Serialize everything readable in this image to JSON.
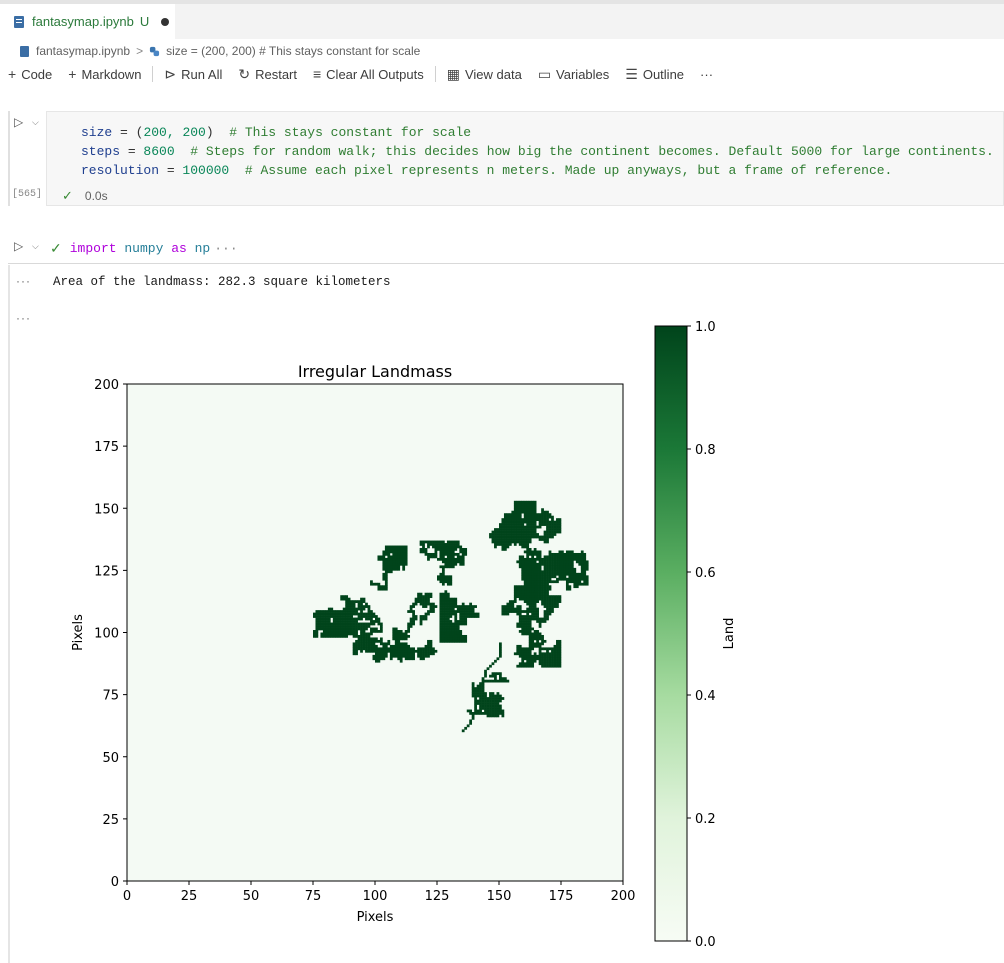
{
  "tab": {
    "filename": "fantasymap.ipynb",
    "status": "U"
  },
  "breadcrumb": {
    "file": "fantasymap.ipynb",
    "sep": ">",
    "symbol": "size = (200, 200)  # This stays constant for scale"
  },
  "toolbar": {
    "code": "Code",
    "markdown": "Markdown",
    "run_all": "Run All",
    "restart": "Restart",
    "clear": "Clear All Outputs",
    "view_data": "View data",
    "variables": "Variables",
    "outline": "Outline",
    "more": "···"
  },
  "cell1": {
    "lines": [
      {
        "name": "size",
        "eq": " = (",
        "val": "200, 200",
        "close": ")  ",
        "comment": "# This stays constant for scale"
      },
      {
        "name": "steps",
        "eq": " = ",
        "val": "8600",
        "close": "  ",
        "comment": "# Steps for random walk; this decides how big the continent becomes. Default 5000 for large continents."
      },
      {
        "name": "resolution",
        "eq": " = ",
        "val": "100000",
        "close": "  ",
        "comment": "# Assume each pixel represents n meters. Made up anyways, but a frame of reference."
      }
    ],
    "exec_count": "[565]",
    "duration": "0.0s"
  },
  "cell2": {
    "kw_import": "import",
    "module": "numpy",
    "kw_as": "as",
    "alias": "np",
    "ellipsis": "···",
    "output_dots": "···",
    "output_text": "Area of the landmass: 282.3 square kilometers"
  },
  "chart_data": {
    "type": "heatmap",
    "title": "Irregular Landmass",
    "xlabel": "Pixels",
    "ylabel": "Pixels",
    "xlim": [
      0,
      200
    ],
    "ylim": [
      0,
      200
    ],
    "xticks": [
      "0",
      "25",
      "50",
      "75",
      "100",
      "125",
      "150",
      "175",
      "200"
    ],
    "yticks": [
      "0",
      "25",
      "50",
      "75",
      "100",
      "125",
      "150",
      "175",
      "200"
    ],
    "colorbar": {
      "label": "Land",
      "range": [
        0,
        1
      ],
      "ticks": [
        "0.0",
        "0.2",
        "0.4",
        "0.6",
        "0.8",
        "1.0"
      ]
    },
    "colormap": {
      "low": "#f4faf4",
      "high": "#00441b"
    },
    "land_extent": {
      "x": [
        75,
        185
      ],
      "y": [
        60,
        162
      ]
    }
  }
}
